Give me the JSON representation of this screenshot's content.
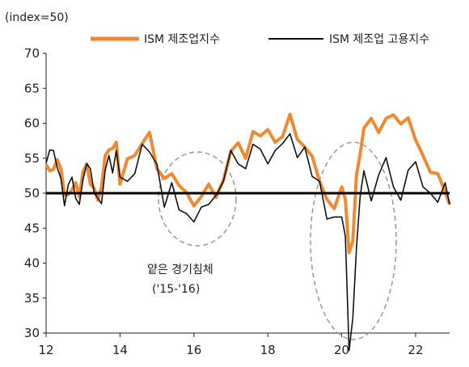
{
  "chart_data": {
    "type": "line",
    "title": "",
    "unit_label": "(index=50)",
    "xlabel": "",
    "ylabel": "",
    "xlim": [
      2012,
      2022.92
    ],
    "ylim": [
      30,
      70
    ],
    "xticks": [
      12,
      14,
      16,
      18,
      20,
      22
    ],
    "yticks": [
      30,
      35,
      40,
      45,
      50,
      55,
      60,
      65,
      70
    ],
    "reference_line": 50,
    "legend": "top",
    "grid": false,
    "series": [
      {
        "name": "ISM 제조업지수",
        "color": "#f08a32",
        "x": [
          2012.0,
          2012.1,
          2012.2,
          2012.3,
          2012.4,
          2012.5,
          2012.6,
          2012.7,
          2012.8,
          2012.9,
          2013.0,
          2013.1,
          2013.2,
          2013.3,
          2013.4,
          2013.5,
          2013.6,
          2013.7,
          2013.8,
          2013.9,
          2014.0,
          2014.2,
          2014.4,
          2014.6,
          2014.8,
          2015.0,
          2015.2,
          2015.4,
          2015.6,
          2015.8,
          2016.0,
          2016.2,
          2016.4,
          2016.6,
          2016.8,
          2017.0,
          2017.2,
          2017.4,
          2017.6,
          2017.8,
          2018.0,
          2018.2,
          2018.4,
          2018.6,
          2018.8,
          2019.0,
          2019.2,
          2019.4,
          2019.6,
          2019.8,
          2020.0,
          2020.1,
          2020.2,
          2020.3,
          2020.4,
          2020.5,
          2020.6,
          2020.8,
          2021.0,
          2021.2,
          2021.4,
          2021.6,
          2021.8,
          2022.0,
          2022.2,
          2022.4,
          2022.6,
          2022.8,
          2022.92
        ],
        "values": [
          54.1,
          53.2,
          53.4,
          54.8,
          53.5,
          49.7,
          49.8,
          50.5,
          51.5,
          49.5,
          53.1,
          54.2,
          51.3,
          50.7,
          49.0,
          50.9,
          55.4,
          56.2,
          56.4,
          57.3,
          51.3,
          54.9,
          55.4,
          57.1,
          58.7,
          53.5,
          52.1,
          52.8,
          51.1,
          50.1,
          48.2,
          49.5,
          51.3,
          49.4,
          51.9,
          56.0,
          57.2,
          55.0,
          58.8,
          58.2,
          59.1,
          57.3,
          58.1,
          61.3,
          57.7,
          56.6,
          55.3,
          51.7,
          49.1,
          47.8,
          50.9,
          49.1,
          41.5,
          43.1,
          52.6,
          55.6,
          59.3,
          60.7,
          58.7,
          60.7,
          61.2,
          59.9,
          60.8,
          57.6,
          55.4,
          53.0,
          52.8,
          50.2,
          48.4
        ]
      },
      {
        "name": "ISM 제조업 고용지수",
        "color": "#111111",
        "x": [
          2012.0,
          2012.1,
          2012.2,
          2012.3,
          2012.4,
          2012.5,
          2012.6,
          2012.7,
          2012.8,
          2012.9,
          2013.0,
          2013.1,
          2013.2,
          2013.3,
          2013.4,
          2013.5,
          2013.6,
          2013.7,
          2013.8,
          2013.9,
          2014.0,
          2014.2,
          2014.4,
          2014.6,
          2014.8,
          2015.0,
          2015.2,
          2015.4,
          2015.6,
          2015.8,
          2016.0,
          2016.2,
          2016.4,
          2016.6,
          2016.8,
          2017.0,
          2017.2,
          2017.4,
          2017.6,
          2017.8,
          2018.0,
          2018.2,
          2018.4,
          2018.6,
          2018.8,
          2019.0,
          2019.2,
          2019.4,
          2019.6,
          2019.8,
          2020.0,
          2020.1,
          2020.2,
          2020.3,
          2020.4,
          2020.5,
          2020.6,
          2020.8,
          2021.0,
          2021.2,
          2021.4,
          2021.6,
          2021.8,
          2022.0,
          2022.2,
          2022.4,
          2022.6,
          2022.8,
          2022.92
        ],
        "values": [
          54.3,
          56.2,
          56.1,
          53.7,
          52.1,
          48.2,
          51.2,
          52.3,
          49.3,
          48.4,
          52.0,
          54.2,
          53.5,
          50.1,
          49.3,
          48.5,
          53.3,
          55.4,
          52.9,
          56.1,
          52.3,
          51.7,
          52.8,
          57.0,
          55.9,
          54.1,
          48.0,
          51.5,
          47.6,
          47.1,
          45.9,
          48.0,
          48.4,
          49.7,
          51.7,
          56.1,
          54.2,
          53.5,
          57.0,
          56.3,
          54.2,
          56.1,
          57.1,
          58.5,
          55.1,
          56.6,
          52.4,
          51.7,
          46.3,
          46.6,
          46.6,
          43.8,
          27.5,
          32.1,
          42.1,
          49.6,
          53.2,
          48.9,
          52.6,
          55.1,
          50.9,
          49.0,
          53.3,
          54.5,
          50.9,
          50.0,
          48.7,
          51.5,
          48.4
        ]
      }
    ],
    "annotations": [
      {
        "lines": [
          "얕은 경기침체",
          "('15-'16)"
        ]
      }
    ]
  }
}
